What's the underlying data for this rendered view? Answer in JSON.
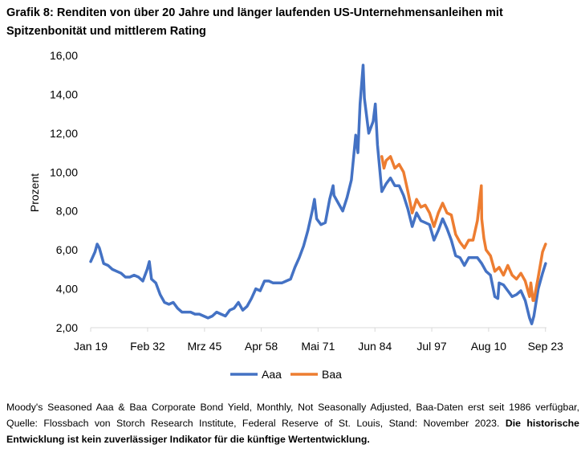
{
  "title": "Grafik 8: Renditen von über 20 Jahre und länger laufenden US-Unternehmensanleihen mit Spitzenbonität und mittlerem Rating",
  "footnote": {
    "normal": "Moody's Seasoned Aaa & Baa Corporate Bond Yield, Monthly, Not Seasonally Adjusted, Baa-Daten erst seit 1986 verfügbar, Quelle: Flossbach von Storch Research Institute, Federal Reserve of St. Louis, Stand: November 2023.",
    "bold": "Die historische Entwicklung ist kein zuverlässiger Indikator für die künftige Wertentwicklung."
  },
  "colors": {
    "Aaa": "#4472C4",
    "Baa": "#ED7D31"
  },
  "chart_data": {
    "type": "line",
    "title": "Grafik 8: Renditen von über 20 Jahre und länger laufenden US-Unternehmensanleihen mit Spitzenbonität und mittlerem Rating",
    "xlabel": "",
    "ylabel": "Prozent",
    "xlim": [
      1919.0,
      2023.9
    ],
    "ylim": [
      2.0,
      16.0
    ],
    "yticks": [
      "2,00",
      "4,00",
      "6,00",
      "8,00",
      "10,00",
      "12,00",
      "14,00",
      "16,00"
    ],
    "yticks_values": [
      2,
      4,
      6,
      8,
      10,
      12,
      14,
      16
    ],
    "xticks": [
      "Jan 19",
      "Feb 32",
      "Mrz 45",
      "Apr 58",
      "Mai 71",
      "Jun 84",
      "Jul 97",
      "Aug 10",
      "Sep 23"
    ],
    "xticks_values": [
      1919.0,
      1932.1,
      1945.2,
      1958.25,
      1971.33,
      1984.42,
      1997.5,
      2010.58,
      2023.67
    ],
    "legend": {
      "position": "bottom",
      "entries": [
        "Aaa",
        "Baa"
      ]
    },
    "series": [
      {
        "name": "Aaa",
        "x": [
          1919,
          1920,
          1920.5,
          1921,
          1922,
          1923,
          1924,
          1925,
          1926,
          1927,
          1928,
          1929,
          1930,
          1931,
          1932,
          1932.5,
          1933,
          1934,
          1935,
          1936,
          1937,
          1938,
          1939,
          1940,
          1941,
          1942,
          1943,
          1944,
          1945,
          1946,
          1947,
          1948,
          1949,
          1950,
          1951,
          1952,
          1953,
          1954,
          1955,
          1956,
          1957,
          1958,
          1959,
          1960,
          1961,
          1962,
          1963,
          1964,
          1965,
          1966,
          1967,
          1968,
          1969,
          1970,
          1970.5,
          1971,
          1972,
          1973,
          1974,
          1974.8,
          1975,
          1976,
          1977,
          1978,
          1979,
          1980,
          1980.5,
          1981,
          1981.7,
          1982,
          1983,
          1984,
          1984.5,
          1985,
          1986,
          1987,
          1988,
          1989,
          1990,
          1991,
          1992,
          1993,
          1994,
          1995,
          1996,
          1997,
          1998,
          1999,
          2000,
          2001,
          2002,
          2003,
          2004,
          2005,
          2006,
          2007,
          2008,
          2009,
          2010,
          2011,
          2012,
          2012.7,
          2013,
          2014,
          2015,
          2016,
          2017,
          2018,
          2019,
          2020,
          2020.5,
          2021,
          2022,
          2023,
          2023.7
        ],
        "values": [
          5.4,
          5.9,
          6.3,
          6.1,
          5.3,
          5.2,
          5.0,
          4.9,
          4.8,
          4.6,
          4.6,
          4.7,
          4.6,
          4.4,
          5.0,
          5.4,
          4.5,
          4.3,
          3.7,
          3.3,
          3.2,
          3.3,
          3.0,
          2.8,
          2.8,
          2.8,
          2.7,
          2.7,
          2.6,
          2.5,
          2.6,
          2.8,
          2.7,
          2.6,
          2.9,
          3.0,
          3.3,
          2.9,
          3.1,
          3.5,
          4.0,
          3.9,
          4.4,
          4.4,
          4.3,
          4.3,
          4.3,
          4.4,
          4.5,
          5.1,
          5.6,
          6.2,
          7.0,
          8.0,
          8.6,
          7.6,
          7.3,
          7.4,
          8.6,
          9.3,
          8.8,
          8.4,
          8.0,
          8.7,
          9.6,
          11.9,
          11.0,
          13.5,
          15.5,
          13.8,
          12.0,
          12.6,
          13.5,
          11.4,
          9.0,
          9.4,
          9.7,
          9.3,
          9.3,
          8.8,
          8.1,
          7.2,
          7.9,
          7.5,
          7.4,
          7.3,
          6.5,
          7.0,
          7.6,
          7.1,
          6.5,
          5.7,
          5.6,
          5.2,
          5.6,
          5.6,
          5.6,
          5.3,
          4.9,
          4.7,
          3.6,
          3.5,
          4.3,
          4.2,
          3.9,
          3.6,
          3.7,
          3.9,
          3.4,
          2.5,
          2.2,
          2.6,
          4.0,
          4.8,
          5.3
        ]
      },
      {
        "name": "Baa",
        "x": [
          1986,
          1986.5,
          1987,
          1988,
          1989,
          1990,
          1991,
          1992,
          1993,
          1994,
          1995,
          1996,
          1997,
          1998,
          1999,
          2000,
          2001,
          2002,
          2003,
          2004,
          2005,
          2006,
          2007,
          2008,
          2008.9,
          2009,
          2009.5,
          2010,
          2011,
          2012,
          2013,
          2014,
          2015,
          2016,
          2017,
          2018,
          2019,
          2020,
          2020.3,
          2020.8,
          2021,
          2022,
          2023,
          2023.7
        ],
        "values": [
          10.8,
          10.2,
          10.6,
          10.8,
          10.2,
          10.4,
          10.0,
          9.0,
          7.9,
          8.6,
          8.2,
          8.3,
          7.9,
          7.2,
          7.9,
          8.4,
          7.9,
          7.8,
          6.8,
          6.4,
          6.1,
          6.5,
          6.5,
          7.5,
          9.3,
          7.6,
          6.6,
          6.0,
          5.7,
          4.9,
          5.1,
          4.7,
          5.2,
          4.7,
          4.5,
          4.8,
          4.4,
          3.6,
          4.3,
          3.4,
          3.4,
          4.6,
          5.9,
          6.3
        ]
      }
    ]
  }
}
